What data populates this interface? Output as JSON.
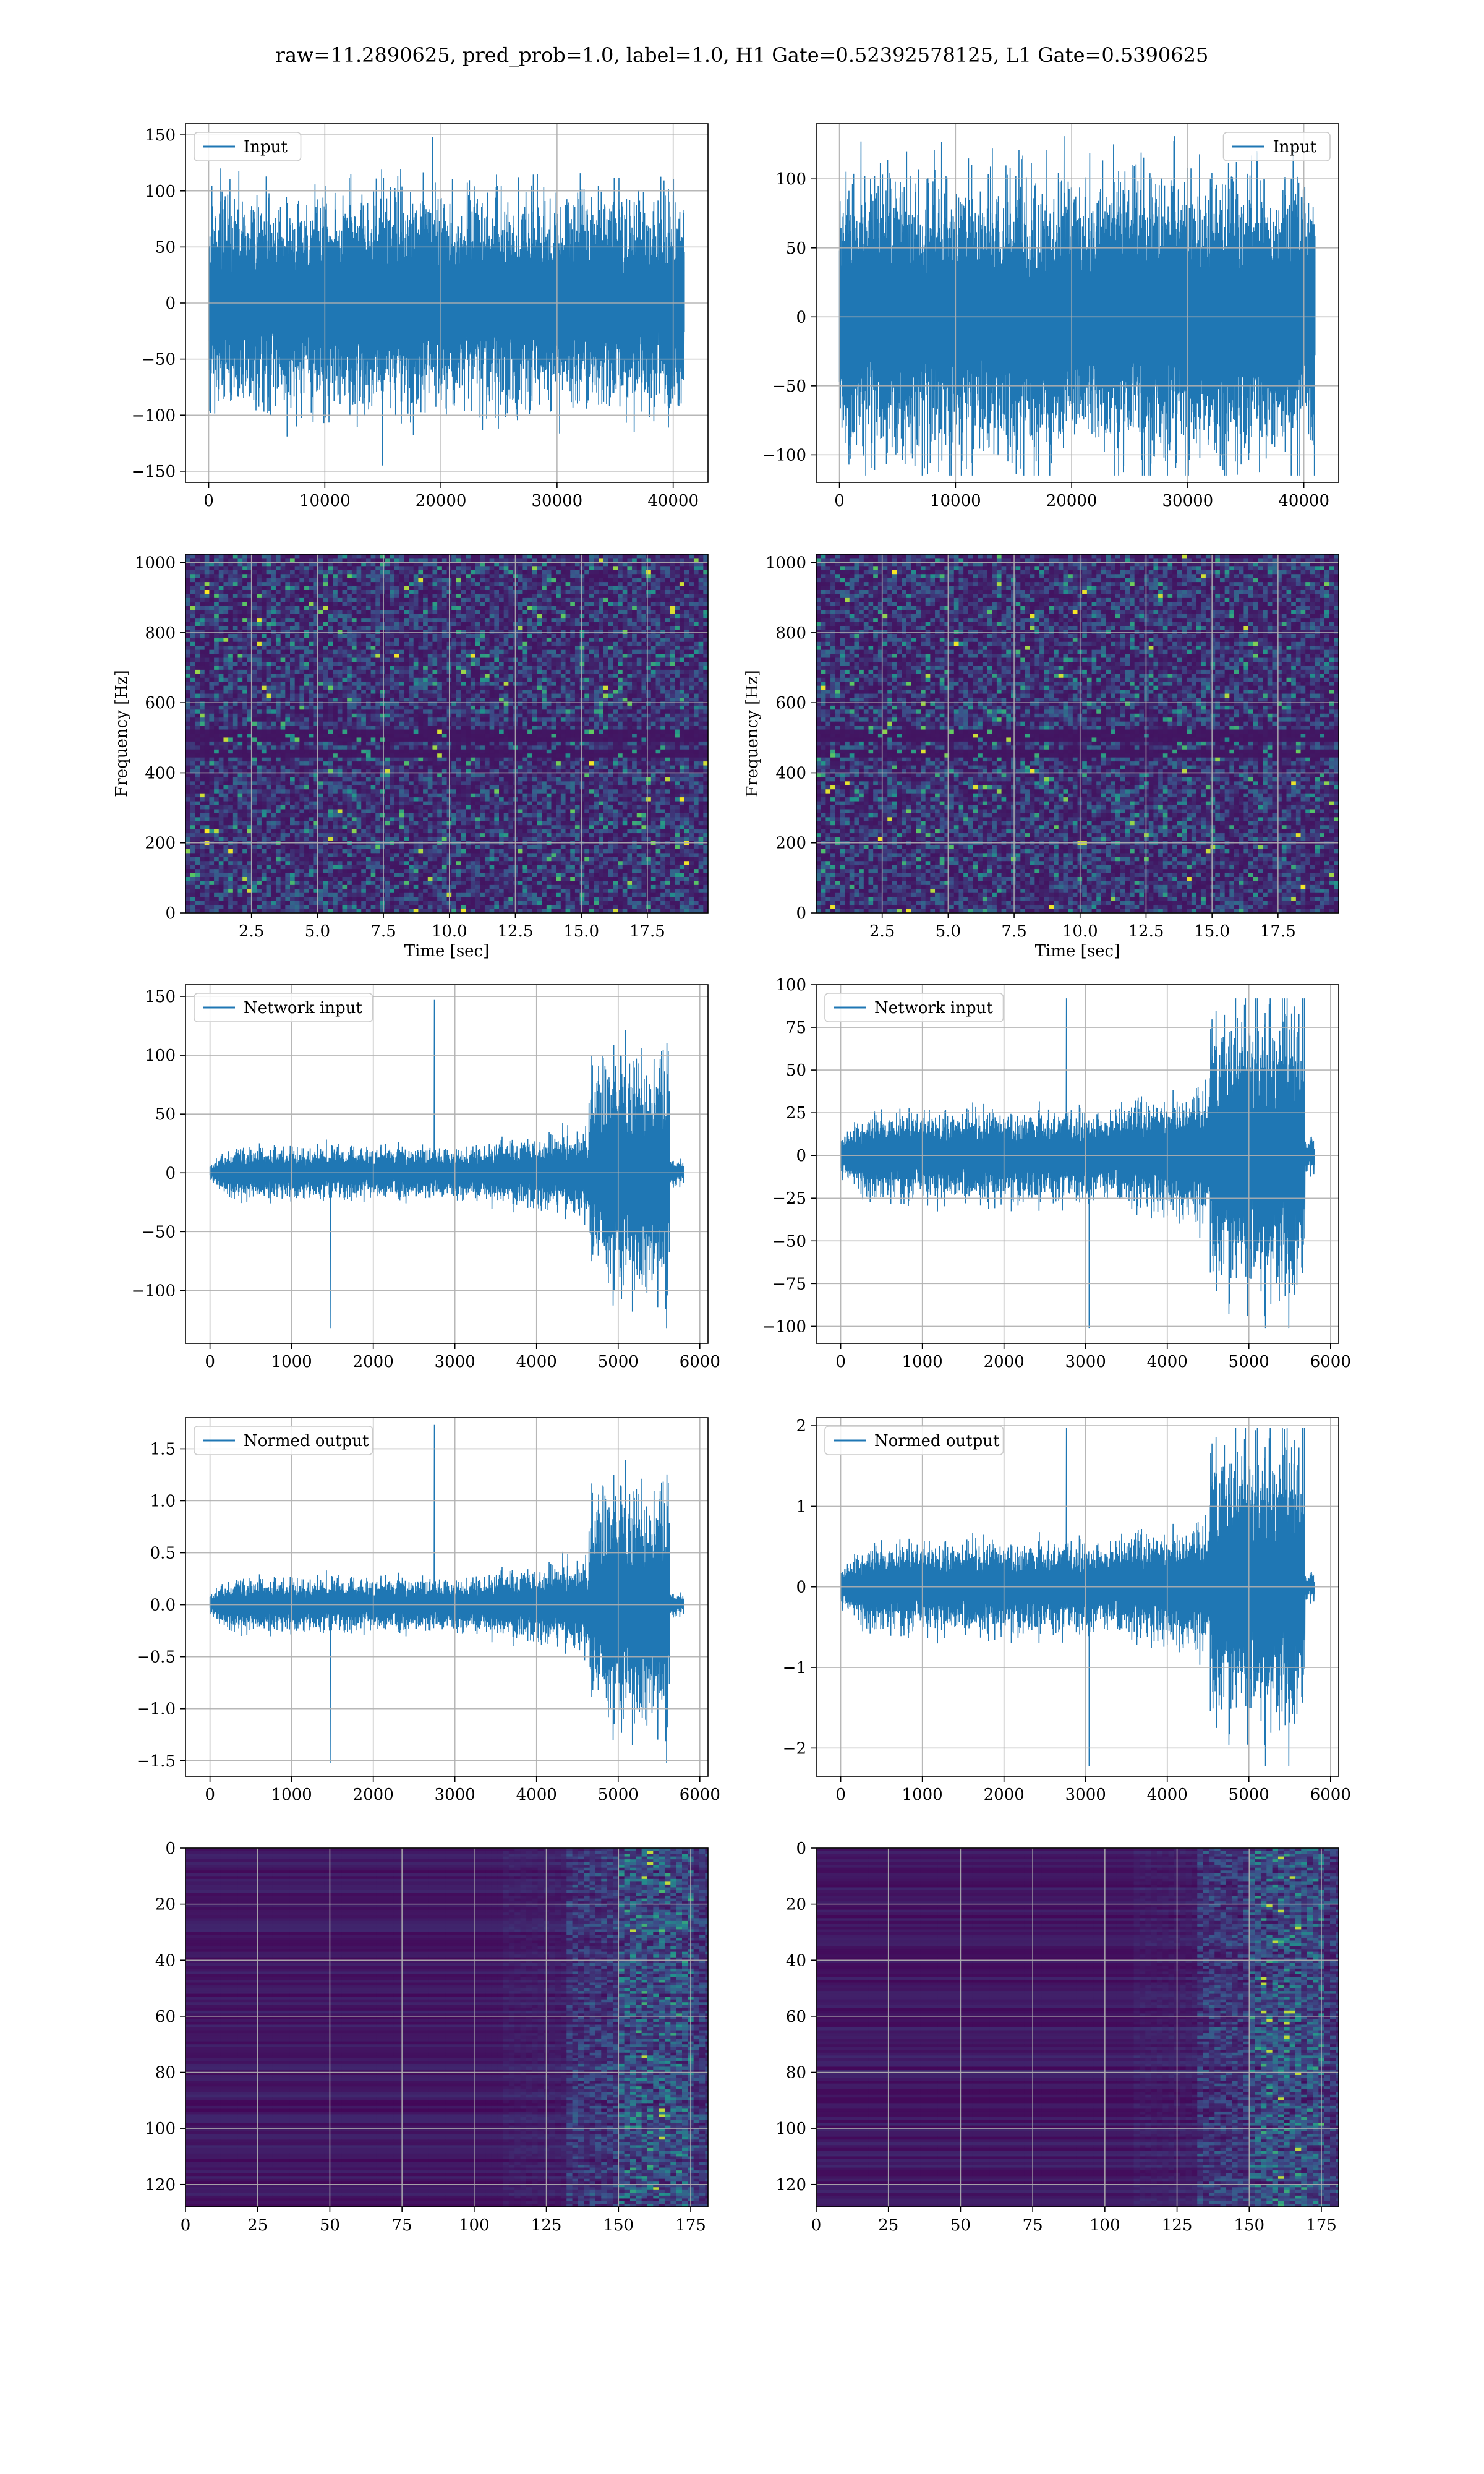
{
  "figure": {
    "title": "raw=11.2890625, pred_prob=1.0, label=1.0, H1 Gate=0.52392578125, L1 Gate=0.5390625"
  },
  "colors": {
    "line": "#1f77b4",
    "grid": "#b0b0b0",
    "axes": "#000000",
    "heatmap_low": "#440154",
    "heatmap_mid": "#21918c",
    "heatmap_high": "#fde725"
  },
  "chart_data": [
    {
      "id": "input-h1",
      "type": "line",
      "row": 0,
      "col": 0,
      "legend": "Input",
      "legend_loc": "upper-left",
      "xlim": [
        -2000,
        43000
      ],
      "ylim": [
        -160,
        160
      ],
      "xticks": [
        0,
        10000,
        20000,
        30000,
        40000
      ],
      "yticks": [
        -150,
        -100,
        -50,
        0,
        50,
        100,
        150
      ],
      "xticklabels": [
        "0",
        "10000",
        "20000",
        "30000",
        "40000"
      ],
      "yticklabels": [
        "−150",
        "−100",
        "−50",
        "0",
        "50",
        "100",
        "150"
      ],
      "xlabel": "",
      "ylabel": "",
      "signal": {
        "x_start": 0,
        "x_end": 40960,
        "n": 1500,
        "segments": [
          [
            0,
            1,
            26,
            26
          ]
        ],
        "cap": [
          148,
          -145
        ],
        "seed": 11
      }
    },
    {
      "id": "input-l1",
      "type": "line",
      "row": 0,
      "col": 1,
      "legend": "Input",
      "legend_loc": "upper-right",
      "xlim": [
        -2000,
        43000
      ],
      "ylim": [
        -120,
        140
      ],
      "xticks": [
        0,
        10000,
        20000,
        30000,
        40000
      ],
      "yticks": [
        -100,
        -50,
        0,
        50,
        100
      ],
      "xticklabels": [
        "0",
        "10000",
        "20000",
        "30000",
        "40000"
      ],
      "yticklabels": [
        "−100",
        "−50",
        "0",
        "50",
        "100"
      ],
      "xlabel": "",
      "ylabel": "",
      "signal": {
        "x_start": 0,
        "x_end": 40960,
        "n": 1500,
        "segments": [
          [
            0,
            1,
            28,
            28
          ]
        ],
        "cap": [
          131,
          -115
        ],
        "seed": 23
      }
    },
    {
      "id": "spec-h1",
      "type": "heatmap",
      "row": 1,
      "col": 0,
      "xlim": [
        0,
        19.8
      ],
      "ylim": [
        0,
        1024
      ],
      "xticks": [
        2.5,
        5.0,
        7.5,
        10.0,
        12.5,
        15.0,
        17.5
      ],
      "yticks": [
        0,
        200,
        400,
        600,
        800,
        1000
      ],
      "xticklabels": [
        "2.5",
        "5.0",
        "7.5",
        "10.0",
        "12.5",
        "15.0",
        "17.5"
      ],
      "yticklabels": [
        "0",
        "200",
        "400",
        "600",
        "800",
        "1000"
      ],
      "xlabel": "Time [sec]",
      "ylabel": "Frequency [Hz]",
      "grid": {
        "cols": 110,
        "rows": 90,
        "kind": "spectrogram",
        "seed": 5
      }
    },
    {
      "id": "spec-l1",
      "type": "heatmap",
      "row": 1,
      "col": 1,
      "xlim": [
        0,
        19.8
      ],
      "ylim": [
        0,
        1024
      ],
      "xticks": [
        2.5,
        5.0,
        7.5,
        10.0,
        12.5,
        15.0,
        17.5
      ],
      "yticks": [
        0,
        200,
        400,
        600,
        800,
        1000
      ],
      "xticklabels": [
        "2.5",
        "5.0",
        "7.5",
        "10.0",
        "12.5",
        "15.0",
        "17.5"
      ],
      "yticklabels": [
        "0",
        "200",
        "400",
        "600",
        "800",
        "1000"
      ],
      "xlabel": "Time [sec]",
      "ylabel": "Frequency [Hz]",
      "grid": {
        "cols": 110,
        "rows": 90,
        "kind": "spectrogram",
        "seed": 9
      }
    },
    {
      "id": "netin-h1",
      "type": "line",
      "row": 2,
      "col": 0,
      "legend": "Network input",
      "legend_loc": "upper-left",
      "xlim": [
        -300,
        6100
      ],
      "ylim": [
        -145,
        160
      ],
      "xticks": [
        0,
        1000,
        2000,
        3000,
        4000,
        5000,
        6000
      ],
      "yticks": [
        -100,
        -50,
        0,
        50,
        100,
        150
      ],
      "xticklabels": [
        "0",
        "1000",
        "2000",
        "3000",
        "4000",
        "5000",
        "6000"
      ],
      "yticklabels": [
        "−100",
        "−50",
        "0",
        "50",
        "100",
        "150"
      ],
      "xlabel": "",
      "ylabel": "",
      "signal": {
        "x_start": 0,
        "x_end": 5800,
        "n": 1400,
        "segments": [
          [
            0,
            0.05,
            2,
            6
          ],
          [
            0.05,
            0.55,
            6,
            6
          ],
          [
            0.55,
            0.8,
            6,
            10
          ],
          [
            0.8,
            0.84,
            22,
            26
          ],
          [
            0.84,
            0.97,
            26,
            30
          ],
          [
            0.97,
            1,
            3,
            3
          ]
        ],
        "cap": [
          147,
          -132
        ],
        "seed": 31
      }
    },
    {
      "id": "netin-l1",
      "type": "line",
      "row": 2,
      "col": 1,
      "legend": "Network input",
      "legend_loc": "upper-left",
      "xlim": [
        -300,
        6100
      ],
      "ylim": [
        -110,
        100
      ],
      "xticks": [
        0,
        1000,
        2000,
        3000,
        4000,
        5000,
        6000
      ],
      "yticks": [
        -100,
        -75,
        -50,
        -25,
        0,
        25,
        50,
        75,
        100
      ],
      "xticklabels": [
        "0",
        "1000",
        "2000",
        "3000",
        "4000",
        "5000",
        "6000"
      ],
      "yticklabels": [
        "−100",
        "−75",
        "−50",
        "−25",
        "0",
        "25",
        "50",
        "75",
        "100"
      ],
      "xlabel": "",
      "ylabel": "",
      "signal": {
        "x_start": 0,
        "x_end": 5800,
        "n": 1400,
        "segments": [
          [
            0,
            0.05,
            3,
            7
          ],
          [
            0.05,
            0.55,
            7,
            7
          ],
          [
            0.55,
            0.78,
            7,
            11
          ],
          [
            0.78,
            0.83,
            20,
            24
          ],
          [
            0.83,
            0.98,
            24,
            24
          ],
          [
            0.98,
            1,
            3,
            3
          ]
        ],
        "cap": [
          92,
          -101
        ],
        "seed": 47
      }
    },
    {
      "id": "normed-h1",
      "type": "line",
      "row": 3,
      "col": 0,
      "legend": "Normed output",
      "legend_loc": "upper-left",
      "xlim": [
        -300,
        6100
      ],
      "ylim": [
        -1.65,
        1.8
      ],
      "xticks": [
        0,
        1000,
        2000,
        3000,
        4000,
        5000,
        6000
      ],
      "yticks": [
        -1.5,
        -1.0,
        -0.5,
        0.0,
        0.5,
        1.0,
        1.5
      ],
      "xticklabels": [
        "0",
        "1000",
        "2000",
        "3000",
        "4000",
        "5000",
        "6000"
      ],
      "yticklabels": [
        "−1.5",
        "−1.0",
        "−0.5",
        "0.0",
        "0.5",
        "1.0",
        "1.5"
      ],
      "xlabel": "",
      "ylabel": "",
      "signal": {
        "x_start": 0,
        "x_end": 5800,
        "n": 1400,
        "segments": [
          [
            0,
            0.05,
            0.03,
            0.07
          ],
          [
            0.05,
            0.55,
            0.07,
            0.07
          ],
          [
            0.55,
            0.8,
            0.07,
            0.12
          ],
          [
            0.8,
            0.84,
            0.26,
            0.3
          ],
          [
            0.84,
            0.97,
            0.3,
            0.34
          ],
          [
            0.97,
            1,
            0.03,
            0.03
          ]
        ],
        "cap": [
          1.73,
          -1.52
        ],
        "seed": 31
      }
    },
    {
      "id": "normed-l1",
      "type": "line",
      "row": 3,
      "col": 1,
      "legend": "Normed output",
      "legend_loc": "upper-left",
      "xlim": [
        -300,
        6100
      ],
      "ylim": [
        -2.35,
        2.1
      ],
      "xticks": [
        0,
        1000,
        2000,
        3000,
        4000,
        5000,
        6000
      ],
      "yticks": [
        -2,
        -1,
        0,
        1,
        2
      ],
      "xticklabels": [
        "0",
        "1000",
        "2000",
        "3000",
        "4000",
        "5000",
        "6000"
      ],
      "yticklabels": [
        "−2",
        "−1",
        "0",
        "1",
        "2"
      ],
      "xlabel": "",
      "ylabel": "",
      "signal": {
        "x_start": 0,
        "x_end": 5800,
        "n": 1400,
        "segments": [
          [
            0,
            0.05,
            0.06,
            0.15
          ],
          [
            0.05,
            0.55,
            0.15,
            0.15
          ],
          [
            0.55,
            0.78,
            0.15,
            0.22
          ],
          [
            0.78,
            0.83,
            0.45,
            0.5
          ],
          [
            0.83,
            0.98,
            0.5,
            0.5
          ],
          [
            0.98,
            1,
            0.05,
            0.05
          ]
        ],
        "cap": [
          1.97,
          -2.22
        ],
        "seed": 47
      }
    },
    {
      "id": "feat-h1",
      "type": "heatmap",
      "row": 4,
      "col": 0,
      "xlim": [
        0,
        181
      ],
      "ylim": [
        128,
        0
      ],
      "xticks": [
        0,
        25,
        50,
        75,
        100,
        125,
        150,
        175
      ],
      "yticks": [
        0,
        20,
        40,
        60,
        80,
        100,
        120
      ],
      "xticklabels": [
        "0",
        "25",
        "50",
        "75",
        "100",
        "125",
        "150",
        "175"
      ],
      "yticklabels": [
        "0",
        "20",
        "40",
        "60",
        "80",
        "100",
        "120"
      ],
      "xlabel": "",
      "ylabel": "",
      "grid": {
        "cols": 181,
        "rows": 128,
        "kind": "features",
        "seed": 3
      }
    },
    {
      "id": "feat-l1",
      "type": "heatmap",
      "row": 4,
      "col": 1,
      "xlim": [
        0,
        181
      ],
      "ylim": [
        128,
        0
      ],
      "xticks": [
        0,
        25,
        50,
        75,
        100,
        125,
        150,
        175
      ],
      "yticks": [
        0,
        20,
        40,
        60,
        80,
        100,
        120
      ],
      "xticklabels": [
        "0",
        "25",
        "50",
        "75",
        "100",
        "125",
        "150",
        "175"
      ],
      "yticklabels": [
        "0",
        "20",
        "40",
        "60",
        "80",
        "100",
        "120"
      ],
      "xlabel": "",
      "ylabel": "",
      "grid": {
        "cols": 181,
        "rows": 128,
        "kind": "features",
        "seed": 17
      }
    }
  ]
}
